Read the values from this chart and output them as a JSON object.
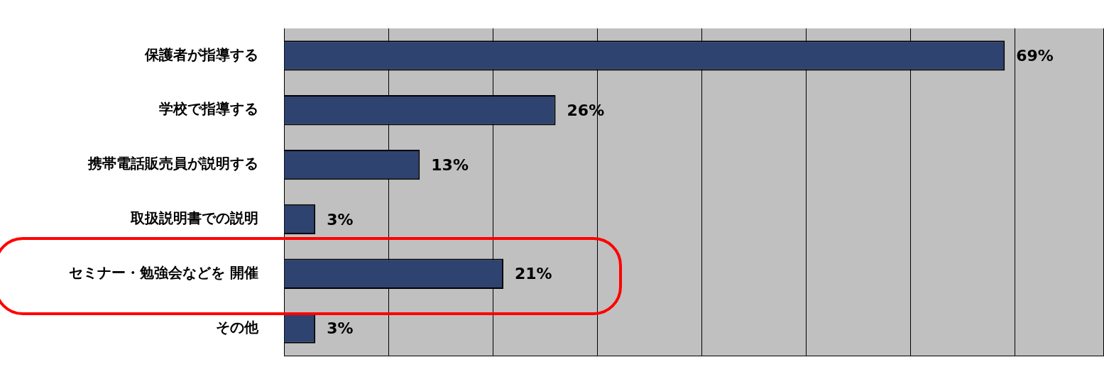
{
  "chart_data": {
    "type": "bar",
    "orientation": "horizontal",
    "categories": [
      "保護者が指導する",
      "学校で指導する",
      "携帯電話販売員が説明する",
      "取扱説明書での説明",
      "セミナー・勉強会などを 開催",
      "その他"
    ],
    "values": [
      69,
      26,
      13,
      3,
      21,
      3
    ],
    "value_labels": [
      "69%",
      "26%",
      "13%",
      "3%",
      "21%",
      "3%"
    ],
    "color": "#2f4370",
    "xlim": [
      0,
      78.5
    ],
    "grid": "x",
    "legend": false,
    "tick_labels": "y"
  }
}
